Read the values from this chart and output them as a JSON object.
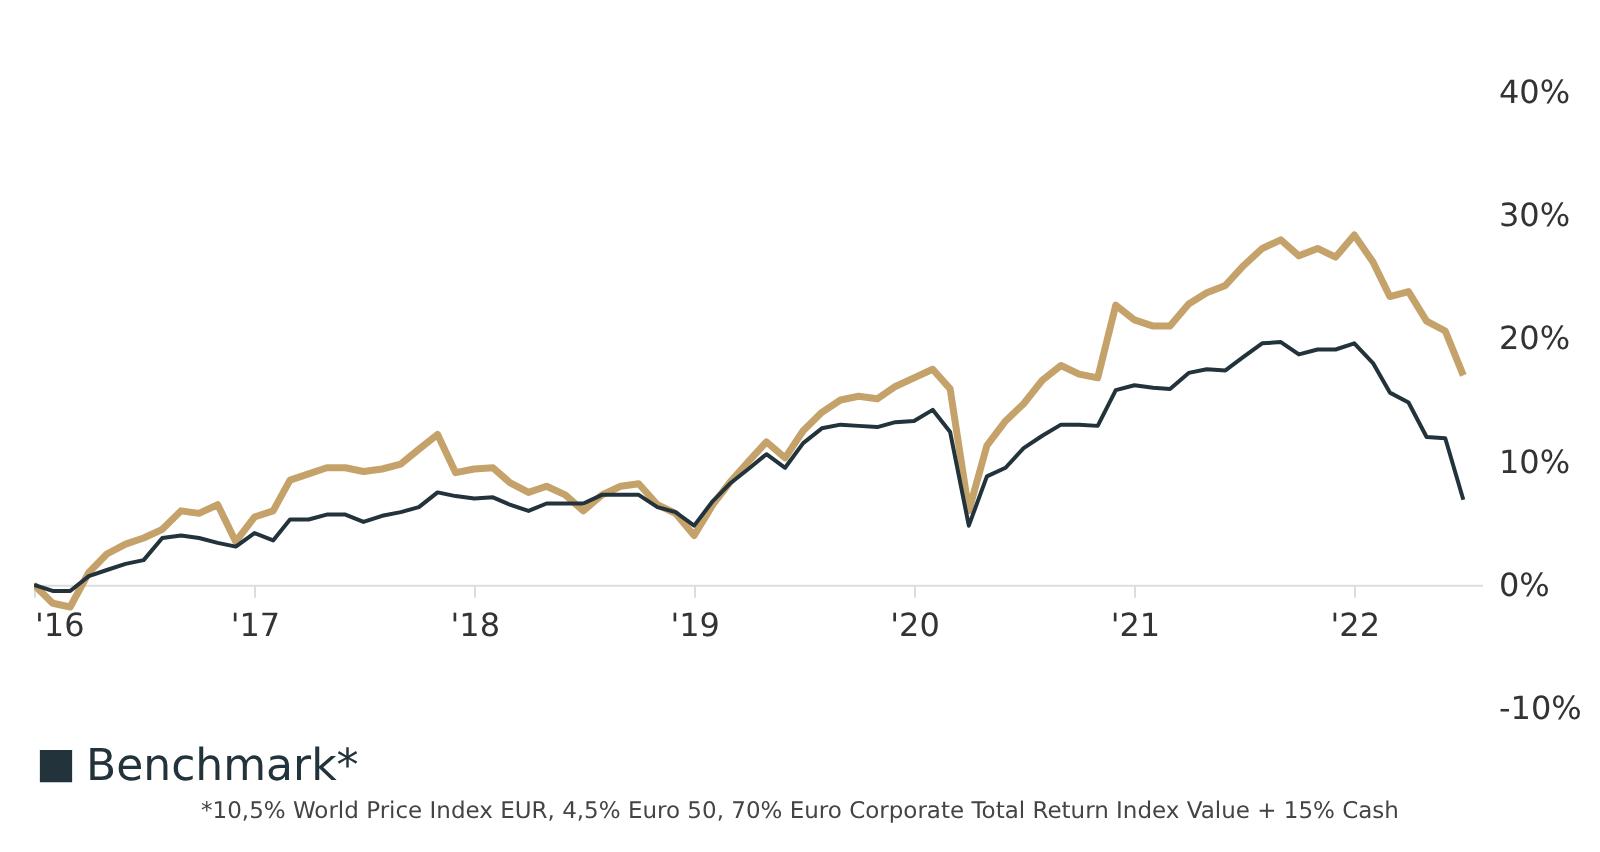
{
  "chart_data": {
    "type": "line",
    "x": [
      "2016-01",
      "2016-02",
      "2016-03",
      "2016-04",
      "2016-05",
      "2016-06",
      "2016-07",
      "2016-08",
      "2016-09",
      "2016-10",
      "2016-11",
      "2016-12",
      "2017-01",
      "2017-02",
      "2017-03",
      "2017-04",
      "2017-05",
      "2017-06",
      "2017-07",
      "2017-08",
      "2017-09",
      "2017-10",
      "2017-11",
      "2017-12",
      "2018-01",
      "2018-02",
      "2018-03",
      "2018-04",
      "2018-05",
      "2018-06",
      "2018-07",
      "2018-08",
      "2018-09",
      "2018-10",
      "2018-11",
      "2018-12",
      "2019-01",
      "2019-02",
      "2019-03",
      "2019-04",
      "2019-05",
      "2019-06",
      "2019-07",
      "2019-08",
      "2019-09",
      "2019-10",
      "2019-11",
      "2019-12",
      "2020-01",
      "2020-02",
      "2020-03",
      "2020-04",
      "2020-05",
      "2020-06",
      "2020-07",
      "2020-08",
      "2020-09",
      "2020-10",
      "2020-11",
      "2020-12",
      "2021-01",
      "2021-02",
      "2021-03",
      "2021-04",
      "2021-05",
      "2021-06",
      "2021-07",
      "2021-08",
      "2021-09",
      "2021-10",
      "2021-11",
      "2021-12",
      "2022-01",
      "2022-02",
      "2022-03",
      "2022-04",
      "2022-05",
      "2022-06",
      "2022-07"
    ],
    "series": [
      {
        "color": "#c4a26a",
        "values": [
          0,
          -1.5,
          -1.8,
          1,
          2.5,
          3.3,
          3.8,
          4.5,
          6,
          5.8,
          6.5,
          3.5,
          5.5,
          6,
          8.5,
          9,
          9.5,
          9.5,
          9.2,
          9.4,
          9.8,
          11,
          12.2,
          9.1,
          9.4,
          9.5,
          8.3,
          7.5,
          8,
          7.3,
          6,
          7.3,
          8,
          8.2,
          6.5,
          5.8,
          4,
          6.5,
          8.3,
          10,
          11.6,
          10.3,
          12.5,
          14,
          15,
          15.3,
          15.1,
          16.1,
          16.8,
          17.5,
          15.9,
          6,
          11.3,
          13.3,
          14.7,
          16.6,
          17.8,
          17.1,
          16.8,
          22.7,
          21.5,
          21,
          21,
          22.8,
          23.7,
          24.3,
          25.9,
          27.3,
          28,
          26.7,
          27.3,
          26.6,
          28.4,
          26.2,
          23.4,
          23.8,
          21.4,
          20.6,
          17
        ]
      },
      {
        "name": "Benchmark*",
        "color": "#22333b",
        "values": [
          0,
          -0.5,
          -0.5,
          0.7,
          1.2,
          1.7,
          2,
          3.8,
          4,
          3.8,
          3.4,
          3.1,
          4.2,
          3.6,
          5.3,
          5.3,
          5.7,
          5.7,
          5.1,
          5.6,
          5.9,
          6.3,
          7.5,
          7.2,
          7,
          7.1,
          6.5,
          6,
          6.6,
          6.6,
          6.6,
          7.3,
          7.3,
          7.3,
          6.3,
          5.9,
          4.8,
          6.8,
          8.2,
          9.4,
          10.6,
          9.5,
          11.5,
          12.7,
          13,
          12.9,
          12.8,
          13.2,
          13.3,
          14.2,
          12.4,
          4.8,
          8.8,
          9.5,
          11.1,
          12.1,
          13,
          13,
          12.9,
          15.8,
          16.2,
          16,
          15.9,
          17.2,
          17.5,
          17.4,
          18.5,
          19.6,
          19.7,
          18.7,
          19.1,
          19.1,
          19.6,
          18,
          15.6,
          14.8,
          12,
          11.9,
          6.9
        ]
      }
    ],
    "xlim": [
      "2016-01",
      "2022-08"
    ],
    "xticks": [
      {
        "value": "2016",
        "label": "'16"
      },
      {
        "value": "2017",
        "label": "'17"
      },
      {
        "value": "2018",
        "label": "'18"
      },
      {
        "value": "2019",
        "label": "'19"
      },
      {
        "value": "2020",
        "label": "'20"
      },
      {
        "value": "2021",
        "label": "'21"
      },
      {
        "value": "2022",
        "label": "'22"
      }
    ],
    "ylim": [
      -10,
      40
    ],
    "yticks": [
      {
        "value": -10,
        "label": "-10%"
      },
      {
        "value": 0,
        "label": "0%"
      },
      {
        "value": 10,
        "label": "10%"
      },
      {
        "value": 20,
        "label": "20%"
      },
      {
        "value": 30,
        "label": "30%"
      },
      {
        "value": 40,
        "label": "40%"
      }
    ],
    "grid": false,
    "legend": "bottom",
    "annotations": [
      "*10,5% World Price Index EUR, 4,5% Euro 50, 70% Euro Corporate Total Return Index Value + 15% Cash"
    ]
  }
}
